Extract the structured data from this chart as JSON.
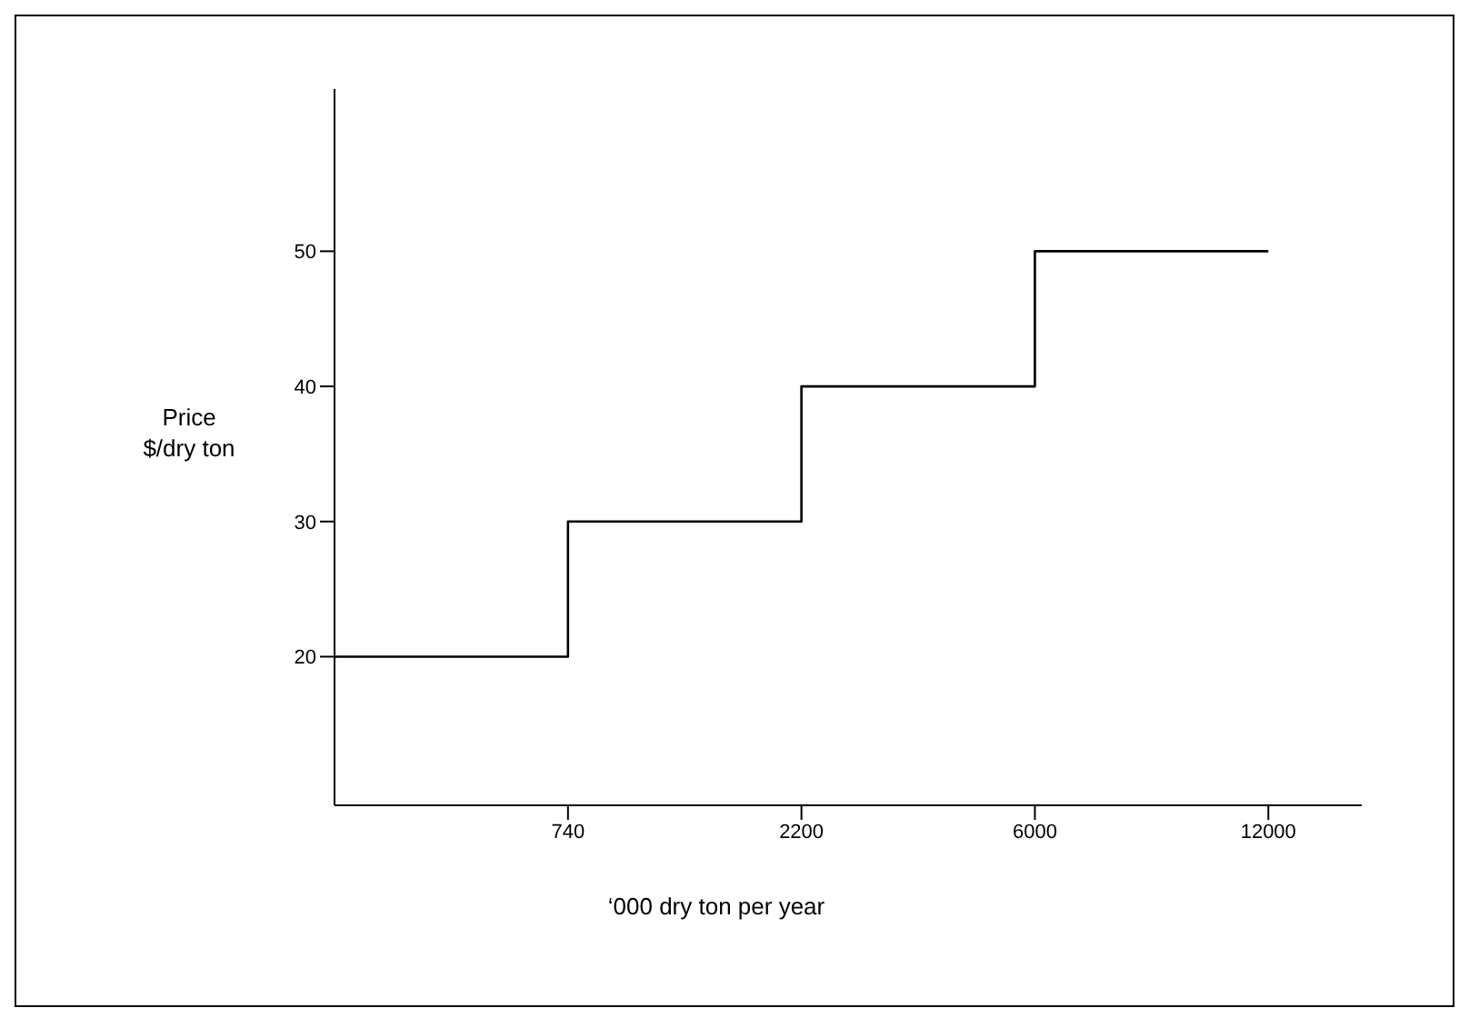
{
  "chart_data": {
    "type": "step",
    "xlabel": "‘000 dry ton per year",
    "ylabel": "Price\n$/dry ton",
    "categories": [
      null,
      "740",
      "2200",
      "6000",
      "12000"
    ],
    "values": [
      20,
      30,
      40,
      50,
      50
    ],
    "color": "#000000",
    "ylim": [
      9,
      62
    ],
    "yticks": [
      20,
      30,
      40,
      50
    ],
    "grid": false,
    "marker": "none"
  }
}
